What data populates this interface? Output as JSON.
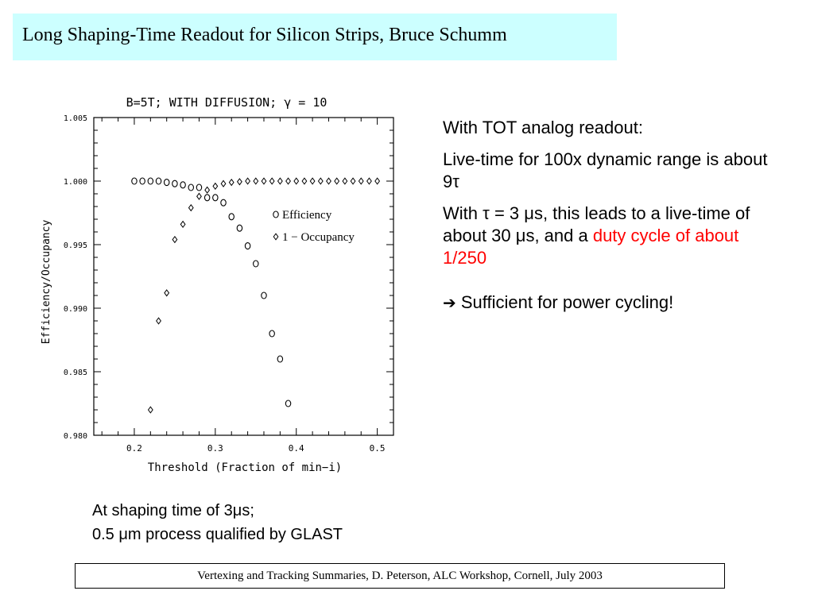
{
  "slide": {
    "title": "Long Shaping-Time Readout for Silicon Strips,   Bruce Schumm",
    "footer": "Vertexing and Tracking Summaries, D. Peterson,  ALC Workshop, Cornell, July 2003"
  },
  "bullets": {
    "p1": "With TOT analog readout:",
    "p2a": "Live-time for 100x dynamic range is about 9",
    "p2b": "τ",
    "p3a": "With ",
    "p3b": "τ",
    "p3c": " = 3 ",
    "p3d": "μ",
    "p3e": "s, this leads to a live-time of about 30 ",
    "p3f": "μ",
    "p3g": "s, and a ",
    "p3red": "duty cycle of about 1/250",
    "arrow": "➔",
    "p4": " Sufficient for power cycling!"
  },
  "caption": {
    "line1a": "At shaping time of 3",
    "line1b": "μ",
    "line1c": "s;",
    "line2a": "0.5 ",
    "line2b": "μ",
    "line2c": "m process qualified by GLAST"
  },
  "chart_data": {
    "type": "scatter",
    "title": "B=5T; WITH DIFFUSION; γ = 10",
    "xlabel": "Threshold (Fraction of min−i)",
    "ylabel": "Efficiency/Occupancy",
    "xlim": [
      0.15,
      0.52
    ],
    "ylim": [
      0.98,
      1.005
    ],
    "xticks": [
      {
        "v": 0.2,
        "label": "0.2"
      },
      {
        "v": 0.3,
        "label": "0.3"
      },
      {
        "v": 0.4,
        "label": "0.4"
      },
      {
        "v": 0.5,
        "label": "0.5"
      }
    ],
    "yticks": [
      {
        "v": 0.98,
        "label": "0.980"
      },
      {
        "v": 0.985,
        "label": "0.985"
      },
      {
        "v": 0.99,
        "label": "0.990"
      },
      {
        "v": 0.995,
        "label": "0.995"
      },
      {
        "v": 1.0,
        "label": "1.000"
      },
      {
        "v": 1.005,
        "label": "1.005"
      }
    ],
    "legend_position": "upper-right, inside plot",
    "series": [
      {
        "name": "Efficiency",
        "marker": "circle",
        "x": [
          0.2,
          0.21,
          0.22,
          0.23,
          0.24,
          0.25,
          0.26,
          0.27,
          0.28,
          0.29,
          0.3,
          0.31,
          0.32,
          0.33,
          0.34,
          0.35,
          0.36,
          0.37,
          0.38,
          0.39
        ],
        "y": [
          1.0,
          1.0,
          1.0,
          1.0,
          0.9999,
          0.9998,
          0.9997,
          0.9995,
          0.9995,
          0.9987,
          0.9987,
          0.9983,
          0.9972,
          0.9963,
          0.9949,
          0.9935,
          0.991,
          0.988,
          0.986,
          0.9825
        ]
      },
      {
        "name": "1 − Occupancy",
        "marker": "diamond",
        "x": [
          0.22,
          0.23,
          0.24,
          0.25,
          0.26,
          0.27,
          0.28,
          0.29,
          0.3,
          0.31,
          0.32,
          0.33,
          0.34,
          0.35,
          0.36,
          0.37,
          0.38,
          0.39,
          0.4,
          0.41,
          0.42,
          0.43,
          0.44,
          0.45,
          0.46,
          0.47,
          0.48,
          0.49,
          0.5
        ],
        "y": [
          0.982,
          0.989,
          0.9912,
          0.9954,
          0.9966,
          0.9979,
          0.9988,
          0.9993,
          0.9996,
          0.9998,
          0.9999,
          0.99995,
          1.0,
          1.0,
          1.0,
          1.0,
          1.0,
          1.0,
          1.0,
          1.0,
          1.0,
          1.0,
          1.0,
          1.0,
          1.0,
          1.0,
          1.0,
          1.0,
          1.0
        ]
      }
    ]
  }
}
